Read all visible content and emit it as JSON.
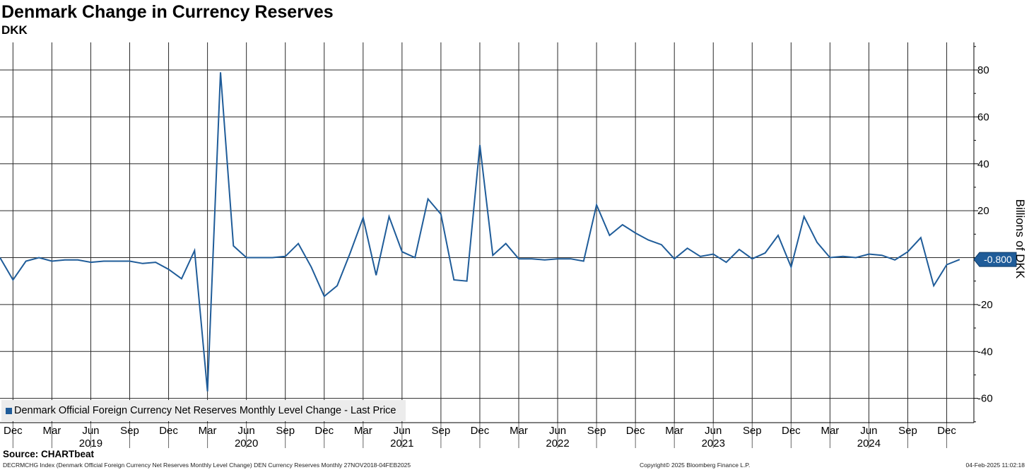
{
  "header": {
    "title": "Denmark Change in Currency Reserves",
    "subtitle": "DKK"
  },
  "legend": {
    "label": "Denmark Official Foreign Currency Net Reserves Monthly Level Change - Last Price"
  },
  "last_value_tag": "-0.800",
  "source": "Source: CHARTbeat",
  "footer": {
    "left": "DECRMCHG Index (Denmark Official Foreign Currency Net Reserves Monthly Level Change) DEN Currency Reserves  Monthly 27NOV2018-04FEB2025",
    "middle": "Copyright© 2025 Bloomberg Finance L.P.",
    "right": "04-Feb-2025 11:02:18"
  },
  "colors": {
    "line": "#1f5c99",
    "grid": "#2a2a2a"
  },
  "chart_data": {
    "type": "line",
    "title": "Denmark Change in Currency Reserves",
    "subtitle": "DKK",
    "ylabel": "Billions of DKK",
    "ylim": [
      -70,
      92
    ],
    "yticks": [
      -60,
      -40,
      -20,
      0,
      20,
      40,
      60,
      80
    ],
    "legend_position": "bottom-left",
    "x_month_ticks": [
      "Dec",
      "Mar",
      "Jun",
      "Sep",
      "Dec",
      "Mar",
      "Jun",
      "Sep",
      "Dec",
      "Mar",
      "Jun",
      "Sep",
      "Dec",
      "Mar",
      "Jun",
      "Sep",
      "Dec",
      "Mar",
      "Jun",
      "Sep",
      "Dec",
      "Mar",
      "Jun",
      "Sep",
      "Dec"
    ],
    "x_year_labels": [
      "2019",
      "2020",
      "2021",
      "2022",
      "2023",
      "2024"
    ],
    "series": [
      {
        "name": "Denmark Official Foreign Currency Net Reserves Monthly Level Change - Last Price",
        "start": "2018-11",
        "frequency": "monthly",
        "values": [
          0,
          -9.5,
          -1.5,
          0,
          -1.5,
          -1,
          -1,
          -2,
          -1.5,
          -1.5,
          -1.5,
          -2.5,
          -2,
          -5,
          -9,
          3,
          -57,
          79,
          5,
          0,
          0,
          0,
          0.5,
          6,
          -4,
          -16.5,
          -12,
          2,
          17,
          -7.5,
          17.5,
          2.5,
          0,
          25,
          18.5,
          -9.5,
          -10,
          48,
          1,
          6,
          -0.5,
          -0.5,
          -1,
          -0.5,
          -0.5,
          -1.5,
          22.5,
          9.5,
          14,
          10.5,
          7.5,
          5.5,
          -0.5,
          4,
          0.5,
          1.5,
          -2,
          3.5,
          -0.5,
          2,
          9.5,
          -4,
          17.5,
          6.5,
          0,
          0.5,
          0,
          1.5,
          1,
          -1,
          2.5,
          8.5,
          -12,
          -3,
          -0.8
        ]
      }
    ]
  }
}
